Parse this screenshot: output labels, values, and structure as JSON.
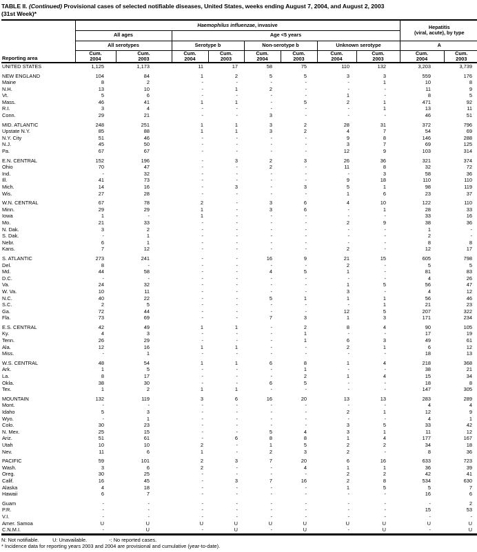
{
  "title": {
    "label": "TABLE II.",
    "continued": "(Continued)",
    "text": "Provisional cases of selected notifiable diseases, United States, weeks ending August 7, 2004, and August 2, 2003",
    "week": "(31st Week)*"
  },
  "header": {
    "reporting_area": "Reporting area",
    "hi_name": "Haemophilus influenzae",
    "hi_suffix": ", invasive",
    "hepatitis_line1": "Hepatitis",
    "hepatitis_line2": "(viral, acute), by type",
    "all_ages": "All ages",
    "age_under5": "Age <5 years",
    "all_serotypes": "All serotypes",
    "serotype_b": "Serotype b",
    "non_serotype_b": "Non-serotype b",
    "unknown_serotype": "Unknown serotype",
    "hep_a": "A",
    "cum": "Cum.",
    "y2004": "2004",
    "y2003": "2003"
  },
  "table": {
    "groups": [
      {
        "rows": [
          [
            "UNITED STATES",
            "1,125",
            "1,173",
            "11",
            "17",
            "58",
            "75",
            "110",
            "132",
            "3,203",
            "3,739"
          ]
        ]
      },
      {
        "rows": [
          [
            "NEW ENGLAND",
            "104",
            "84",
            "1",
            "2",
            "5",
            "5",
            "3",
            "3",
            "559",
            "176"
          ],
          [
            "Maine",
            "8",
            "2",
            "-",
            "-",
            "-",
            "-",
            "-",
            "1",
            "10",
            "8"
          ],
          [
            "N.H.",
            "13",
            "10",
            "-",
            "1",
            "2",
            "-",
            "-",
            "-",
            "11",
            "9"
          ],
          [
            "Vt.",
            "5",
            "6",
            "-",
            "-",
            "-",
            "-",
            "1",
            "-",
            "8",
            "5"
          ],
          [
            "Mass.",
            "46",
            "41",
            "1",
            "1",
            "-",
            "5",
            "2",
            "1",
            "471",
            "92"
          ],
          [
            "R.I.",
            "3",
            "4",
            "-",
            "-",
            "-",
            "-",
            "-",
            "1",
            "13",
            "11"
          ],
          [
            "Conn.",
            "29",
            "21",
            "-",
            "-",
            "3",
            "-",
            "-",
            "-",
            "46",
            "51"
          ]
        ]
      },
      {
        "rows": [
          [
            "MID. ATLANTIC",
            "248",
            "251",
            "1",
            "1",
            "3",
            "2",
            "28",
            "31",
            "372",
            "796"
          ],
          [
            "Upstate N.Y.",
            "85",
            "88",
            "1",
            "1",
            "3",
            "2",
            "4",
            "7",
            "54",
            "69"
          ],
          [
            "N.Y. City",
            "51",
            "46",
            "-",
            "-",
            "-",
            "-",
            "9",
            "8",
            "146",
            "288"
          ],
          [
            "N.J.",
            "45",
            "50",
            "-",
            "-",
            "-",
            "-",
            "3",
            "7",
            "69",
            "125"
          ],
          [
            "Pa.",
            "67",
            "67",
            "-",
            "-",
            "-",
            "-",
            "12",
            "9",
            "103",
            "314"
          ]
        ]
      },
      {
        "rows": [
          [
            "E.N. CENTRAL",
            "152",
            "196",
            "-",
            "3",
            "2",
            "3",
            "26",
            "36",
            "321",
            "374"
          ],
          [
            "Ohio",
            "70",
            "47",
            "-",
            "-",
            "2",
            "-",
            "11",
            "8",
            "32",
            "72"
          ],
          [
            "Ind.",
            "-",
            "32",
            "-",
            "-",
            "-",
            "-",
            "-",
            "3",
            "58",
            "36"
          ],
          [
            "Ill.",
            "41",
            "73",
            "-",
            "-",
            "-",
            "-",
            "9",
            "18",
            "110",
            "110"
          ],
          [
            "Mich.",
            "14",
            "16",
            "-",
            "3",
            "-",
            "3",
            "5",
            "1",
            "98",
            "119"
          ],
          [
            "Wis.",
            "27",
            "28",
            "-",
            "-",
            "-",
            "-",
            "1",
            "6",
            "23",
            "37"
          ]
        ]
      },
      {
        "rows": [
          [
            "W.N. CENTRAL",
            "67",
            "78",
            "2",
            "-",
            "3",
            "6",
            "4",
            "10",
            "122",
            "110"
          ],
          [
            "Minn.",
            "29",
            "29",
            "1",
            "-",
            "3",
            "6",
            "-",
            "1",
            "28",
            "33"
          ],
          [
            "Iowa",
            "1",
            "-",
            "1",
            "-",
            "-",
            "-",
            "-",
            "-",
            "33",
            "16"
          ],
          [
            "Mo.",
            "21",
            "33",
            "-",
            "-",
            "-",
            "-",
            "2",
            "9",
            "38",
            "36"
          ],
          [
            "N. Dak.",
            "3",
            "2",
            "-",
            "-",
            "-",
            "-",
            "-",
            "-",
            "1",
            "-"
          ],
          [
            "S. Dak.",
            "-",
            "1",
            "-",
            "-",
            "-",
            "-",
            "-",
            "-",
            "2",
            "-"
          ],
          [
            "Nebr.",
            "6",
            "1",
            "-",
            "-",
            "-",
            "-",
            "-",
            "-",
            "8",
            "8"
          ],
          [
            "Kans.",
            "7",
            "12",
            "-",
            "-",
            "-",
            "-",
            "2",
            "-",
            "12",
            "17"
          ]
        ]
      },
      {
        "rows": [
          [
            "S. ATLANTIC",
            "273",
            "241",
            "-",
            "-",
            "16",
            "9",
            "21",
            "15",
            "605",
            "798"
          ],
          [
            "Del.",
            "8",
            "-",
            "-",
            "-",
            "-",
            "-",
            "2",
            "-",
            "5",
            "5"
          ],
          [
            "Md.",
            "44",
            "58",
            "-",
            "-",
            "4",
            "5",
            "1",
            "-",
            "81",
            "83"
          ],
          [
            "D.C.",
            "-",
            "-",
            "-",
            "-",
            "-",
            "-",
            "-",
            "-",
            "4",
            "26"
          ],
          [
            "Va.",
            "24",
            "32",
            "-",
            "-",
            "-",
            "-",
            "1",
            "5",
            "56",
            "47"
          ],
          [
            "W. Va.",
            "10",
            "11",
            "-",
            "-",
            "-",
            "-",
            "3",
            "-",
            "4",
            "12"
          ],
          [
            "N.C.",
            "40",
            "22",
            "-",
            "-",
            "5",
            "1",
            "1",
            "1",
            "56",
            "46"
          ],
          [
            "S.C.",
            "2",
            "5",
            "-",
            "-",
            "-",
            "-",
            "-",
            "1",
            "21",
            "23"
          ],
          [
            "Ga.",
            "72",
            "44",
            "-",
            "-",
            "-",
            "-",
            "12",
            "5",
            "207",
            "322"
          ],
          [
            "Fla.",
            "73",
            "69",
            "-",
            "-",
            "7",
            "3",
            "1",
            "3",
            "171",
            "234"
          ]
        ]
      },
      {
        "rows": [
          [
            "E.S. CENTRAL",
            "42",
            "49",
            "1",
            "1",
            "-",
            "2",
            "8",
            "4",
            "90",
            "105"
          ],
          [
            "Ky.",
            "4",
            "3",
            "-",
            "-",
            "-",
            "1",
            "-",
            "-",
            "17",
            "19"
          ],
          [
            "Tenn.",
            "26",
            "29",
            "-",
            "-",
            "-",
            "1",
            "6",
            "3",
            "49",
            "61"
          ],
          [
            "Ala.",
            "12",
            "16",
            "1",
            "1",
            "-",
            "-",
            "2",
            "1",
            "6",
            "12"
          ],
          [
            "Miss.",
            "-",
            "1",
            "-",
            "-",
            "-",
            "-",
            "-",
            "-",
            "18",
            "13"
          ]
        ]
      },
      {
        "rows": [
          [
            "W.S. CENTRAL",
            "48",
            "54",
            "1",
            "1",
            "6",
            "8",
            "1",
            "4",
            "218",
            "368"
          ],
          [
            "Ark.",
            "1",
            "5",
            "-",
            "-",
            "-",
            "1",
            "-",
            "-",
            "38",
            "21"
          ],
          [
            "La.",
            "8",
            "17",
            "-",
            "-",
            "-",
            "2",
            "1",
            "4",
            "15",
            "34"
          ],
          [
            "Okla.",
            "38",
            "30",
            "-",
            "-",
            "6",
            "5",
            "-",
            "-",
            "18",
            "8"
          ],
          [
            "Tex.",
            "1",
            "2",
            "1",
            "1",
            "-",
            "-",
            "-",
            "-",
            "147",
            "305"
          ]
        ]
      },
      {
        "rows": [
          [
            "MOUNTAIN",
            "132",
            "119",
            "3",
            "6",
            "16",
            "20",
            "13",
            "13",
            "283",
            "289"
          ],
          [
            "Mont.",
            "-",
            "-",
            "-",
            "-",
            "-",
            "-",
            "-",
            "-",
            "4",
            "4"
          ],
          [
            "Idaho",
            "5",
            "3",
            "-",
            "-",
            "-",
            "-",
            "2",
            "1",
            "12",
            "9"
          ],
          [
            "Wyo.",
            "-",
            "1",
            "-",
            "-",
            "-",
            "-",
            "-",
            "-",
            "4",
            "1"
          ],
          [
            "Colo.",
            "30",
            "23",
            "-",
            "-",
            "-",
            "-",
            "3",
            "5",
            "33",
            "42"
          ],
          [
            "N. Mex.",
            "25",
            "15",
            "-",
            "-",
            "5",
            "4",
            "3",
            "1",
            "11",
            "12"
          ],
          [
            "Ariz.",
            "51",
            "61",
            "-",
            "6",
            "8",
            "8",
            "1",
            "4",
            "177",
            "167"
          ],
          [
            "Utah",
            "10",
            "10",
            "2",
            "-",
            "1",
            "5",
            "2",
            "2",
            "34",
            "18"
          ],
          [
            "Nev.",
            "11",
            "6",
            "1",
            "-",
            "2",
            "3",
            "2",
            "-",
            "8",
            "36"
          ]
        ]
      },
      {
        "rows": [
          [
            "PACIFIC",
            "59",
            "101",
            "2",
            "3",
            "7",
            "20",
            "6",
            "16",
            "633",
            "723"
          ],
          [
            "Wash.",
            "3",
            "6",
            "2",
            "-",
            "-",
            "4",
            "1",
            "1",
            "36",
            "39"
          ],
          [
            "Oreg.",
            "30",
            "25",
            "-",
            "-",
            "-",
            "-",
            "2",
            "2",
            "42",
            "41"
          ],
          [
            "Calif.",
            "16",
            "45",
            "-",
            "3",
            "7",
            "16",
            "2",
            "8",
            "534",
            "630"
          ],
          [
            "Alaska",
            "4",
            "18",
            "-",
            "-",
            "-",
            "-",
            "1",
            "5",
            "5",
            "7"
          ],
          [
            "Hawaii",
            "6",
            "7",
            "-",
            "-",
            "-",
            "-",
            "-",
            "-",
            "16",
            "6"
          ]
        ]
      },
      {
        "rows": [
          [
            "Guam",
            "-",
            "-",
            "-",
            "-",
            "-",
            "-",
            "-",
            "-",
            "-",
            "2"
          ],
          [
            "P.R.",
            "-",
            "-",
            "-",
            "-",
            "-",
            "-",
            "-",
            "-",
            "15",
            "53"
          ],
          [
            "V.I.",
            "-",
            "-",
            "-",
            "-",
            "-",
            "-",
            "-",
            "-",
            "-",
            "-"
          ],
          [
            "Amer. Samoa",
            "U",
            "U",
            "U",
            "U",
            "U",
            "U",
            "U",
            "U",
            "U",
            "U"
          ],
          [
            "C.N.M.I.",
            "-",
            "U",
            "-",
            "U",
            "-",
            "U",
            "-",
            "U",
            "-",
            "U"
          ]
        ]
      }
    ]
  },
  "footnotes": {
    "legend_n": "N: Not notifiable.",
    "legend_u": "U: Unavailable.",
    "legend_dash": "-: No reported cases.",
    "incidence": "* Incidence data for reporting years 2003 and 2004 are provisional and cumulative (year-to-date)."
  }
}
